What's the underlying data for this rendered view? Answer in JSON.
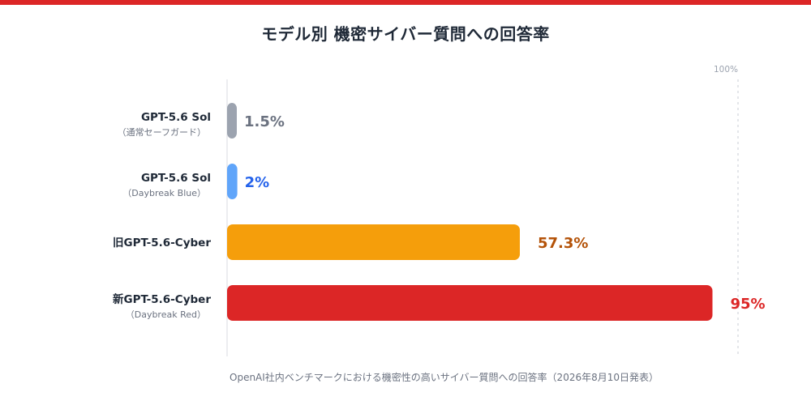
{
  "chart_data": {
    "type": "bar",
    "orientation": "horizontal",
    "title": "モデル別 機密サイバー質問への回答率",
    "categories": [
      "GPT-5.6 Sol",
      "GPT-5.6 Sol",
      "旧GPT-5.6-Cyber",
      "新GPT-5.6-Cyber"
    ],
    "category_sublabels": [
      "（通常セーフガード）",
      "（Daybreak Blue）",
      "",
      "（Daybreak Red）"
    ],
    "values": [
      1.5,
      2,
      57.3,
      95
    ],
    "value_labels": [
      "1.5%",
      "2%",
      "57.3%",
      "95%"
    ],
    "bar_colors": [
      "#9ca3af",
      "#60a5fa",
      "#f59e0b",
      "#dc2626"
    ],
    "label_colors": [
      "#6b7280",
      "#2563eb",
      "#b45309",
      "#dc2626"
    ],
    "xlim": [
      0,
      100
    ],
    "ticks": [
      {
        "value": 100,
        "label": "100%"
      }
    ],
    "legend": "none",
    "footnote": "OpenAI社内ベンチマークにおける機密性の高いサイバー質問への回答率（2026年8月10日発表）"
  },
  "accent_color": "#dc2626"
}
